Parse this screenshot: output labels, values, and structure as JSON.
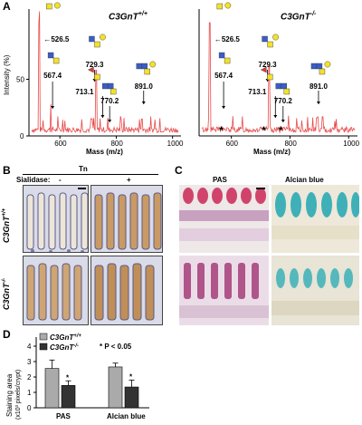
{
  "panel_a": {
    "letter": "A",
    "left_title": "C3GnT+/+",
    "right_title": "C3GnT-/-",
    "ylabel": "Intensity (%)",
    "xlabel": "Mass (m/z)",
    "left_peaks": [
      "526.5",
      "567.4",
      "713.1",
      "729.3",
      "770.2",
      "891.0"
    ],
    "right_peaks": [
      "526.5",
      "567.4",
      "713.1",
      "729.3",
      "770.2",
      "891.0"
    ],
    "x_ticks": [
      "600",
      "800",
      "1000"
    ],
    "y_ticks": [
      "0",
      "50"
    ],
    "asterisk": "*"
  },
  "panel_b": {
    "letter": "B",
    "stain": "Tn",
    "sialidase_label": "Sialidase:",
    "minus": "-",
    "plus": "+",
    "row1": "C3GnT+/+",
    "row2": "C3GnT-/-"
  },
  "panel_c": {
    "letter": "C",
    "col1": "PAS",
    "col2": "Alcian blue"
  },
  "panel_d": {
    "letter": "D",
    "legend1": "C3GnT+/+",
    "legend2": "C3GnT-/-",
    "pvalue": "* P < 0.05",
    "ylabel1": "Staining area",
    "ylabel2": "(x10³ pixels/crypt)",
    "asterisk": "*"
  },
  "chart_data": [
    {
      "type": "line",
      "title": "C3GnT+/+",
      "xlabel": "Mass (m/z)",
      "ylabel": "Intensity (%)",
      "xlim": [
        490,
        1030
      ],
      "ylim": [
        0,
        100
      ],
      "series": [
        {
          "values": [
            [
              526.5,
              100
            ],
            [
              567.4,
              28
            ],
            [
              713.1,
              15
            ],
            [
              729.3,
              58
            ],
            [
              770.2,
              16
            ],
            [
              891.0,
              15
            ]
          ]
        }
      ],
      "annotations": [
        "526.5",
        "567.4",
        "713.1",
        "729.3",
        "770.2",
        "891.0"
      ]
    },
    {
      "type": "line",
      "title": "C3GnT-/-",
      "xlabel": "Mass (m/z)",
      "ylabel": "",
      "xlim": [
        490,
        1030
      ],
      "ylim": [
        0,
        100
      ],
      "series": [
        {
          "values": [
            [
              526.5,
              100
            ],
            [
              567.4,
              8
            ],
            [
              713.1,
              5
            ],
            [
              729.3,
              62
            ],
            [
              770.2,
              8
            ],
            [
              891.0,
              16
            ]
          ]
        }
      ],
      "annotations": [
        "526.5",
        "567.4",
        "713.1",
        "729.3",
        "770.2",
        "891.0"
      ]
    },
    {
      "type": "bar",
      "categories": [
        "PAS",
        "Alcian blue"
      ],
      "series": [
        {
          "name": "C3GnT+/+",
          "values": [
            2.55,
            2.65
          ],
          "errors": [
            0.55,
            0.25
          ],
          "color": "#aaaaaa"
        },
        {
          "name": "C3GnT-/-",
          "values": [
            1.45,
            1.35
          ],
          "errors": [
            0.3,
            0.45
          ],
          "color": "#333333"
        }
      ],
      "ylim": [
        0,
        4
      ],
      "yticks": [
        "0",
        "1",
        "2",
        "3",
        "4"
      ],
      "ylabel": "Staining area (x10³ pixels/crypt)"
    }
  ]
}
